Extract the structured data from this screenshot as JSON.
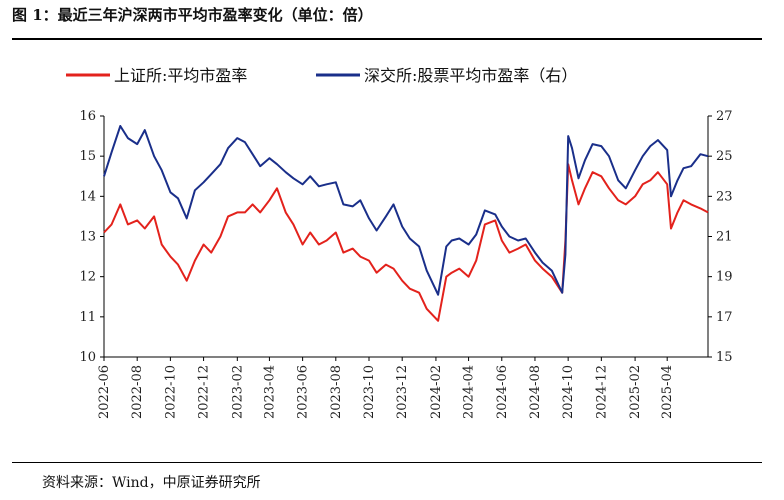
{
  "figure": {
    "title": "图 1：最近三年沪深两市平均市盈率变化（单位：倍）",
    "source": "资料来源：Wind，中原证券研究所"
  },
  "colors": {
    "sh": "#e3221c",
    "sz": "#1a2f8a"
  },
  "chart_data": {
    "type": "line",
    "title": "",
    "xlabel": "",
    "ylabel": "",
    "y2label": "",
    "grid": false,
    "legend": "top",
    "x_ticks": [
      "2022-06",
      "2022-08",
      "2022-10",
      "2022-12",
      "2023-02",
      "2023-04",
      "2023-06",
      "2023-08",
      "2023-10",
      "2023-12",
      "2024-02",
      "2024-04",
      "2024-06",
      "2024-08",
      "2024-10",
      "2024-12",
      "2025-02",
      "2025-04"
    ],
    "ylim": [
      10,
      16
    ],
    "y_ticks": [
      10,
      11,
      12,
      13,
      14,
      15,
      16
    ],
    "y2lim": [
      15,
      27
    ],
    "y2_ticks": [
      15,
      17,
      19,
      21,
      23,
      25,
      27
    ],
    "x_range": [
      "2022-06-01",
      "2025-06-15"
    ],
    "series": [
      {
        "name": "上证所:平均市盈率",
        "axis": "left",
        "points": [
          [
            "2022-06-01",
            13.1
          ],
          [
            "2022-06-15",
            13.3
          ],
          [
            "2022-07-01",
            13.8
          ],
          [
            "2022-07-15",
            13.3
          ],
          [
            "2022-08-01",
            13.4
          ],
          [
            "2022-08-15",
            13.2
          ],
          [
            "2022-09-01",
            13.5
          ],
          [
            "2022-09-15",
            12.8
          ],
          [
            "2022-10-01",
            12.5
          ],
          [
            "2022-10-15",
            12.3
          ],
          [
            "2022-10-31",
            11.9
          ],
          [
            "2022-11-15",
            12.4
          ],
          [
            "2022-12-01",
            12.8
          ],
          [
            "2022-12-15",
            12.6
          ],
          [
            "2023-01-01",
            13.0
          ],
          [
            "2023-01-15",
            13.5
          ],
          [
            "2023-02-01",
            13.6
          ],
          [
            "2023-02-15",
            13.6
          ],
          [
            "2023-03-01",
            13.8
          ],
          [
            "2023-03-15",
            13.6
          ],
          [
            "2023-04-01",
            13.9
          ],
          [
            "2023-04-15",
            14.2
          ],
          [
            "2023-05-01",
            13.6
          ],
          [
            "2023-05-15",
            13.3
          ],
          [
            "2023-06-01",
            12.8
          ],
          [
            "2023-06-15",
            13.1
          ],
          [
            "2023-07-01",
            12.8
          ],
          [
            "2023-07-15",
            12.9
          ],
          [
            "2023-08-01",
            13.1
          ],
          [
            "2023-08-15",
            12.6
          ],
          [
            "2023-09-01",
            12.7
          ],
          [
            "2023-09-15",
            12.5
          ],
          [
            "2023-10-01",
            12.4
          ],
          [
            "2023-10-15",
            12.1
          ],
          [
            "2023-11-01",
            12.3
          ],
          [
            "2023-11-15",
            12.2
          ],
          [
            "2023-12-01",
            11.9
          ],
          [
            "2023-12-15",
            11.7
          ],
          [
            "2024-01-01",
            11.6
          ],
          [
            "2024-01-15",
            11.2
          ],
          [
            "2024-02-05",
            10.9
          ],
          [
            "2024-02-20",
            12.0
          ],
          [
            "2024-03-01",
            12.1
          ],
          [
            "2024-03-15",
            12.2
          ],
          [
            "2024-04-01",
            12.0
          ],
          [
            "2024-04-15",
            12.4
          ],
          [
            "2024-05-01",
            13.3
          ],
          [
            "2024-05-20",
            13.4
          ],
          [
            "2024-06-01",
            12.9
          ],
          [
            "2024-06-15",
            12.6
          ],
          [
            "2024-07-01",
            12.7
          ],
          [
            "2024-07-15",
            12.8
          ],
          [
            "2024-08-01",
            12.4
          ],
          [
            "2024-08-15",
            12.2
          ],
          [
            "2024-09-01",
            12.0
          ],
          [
            "2024-09-20",
            11.6
          ],
          [
            "2024-09-26",
            12.9
          ],
          [
            "2024-10-01",
            14.8
          ],
          [
            "2024-10-08",
            14.4
          ],
          [
            "2024-10-20",
            13.8
          ],
          [
            "2024-11-01",
            14.2
          ],
          [
            "2024-11-15",
            14.6
          ],
          [
            "2024-12-01",
            14.5
          ],
          [
            "2024-12-15",
            14.2
          ],
          [
            "2025-01-01",
            13.9
          ],
          [
            "2025-01-15",
            13.8
          ],
          [
            "2025-02-01",
            14.0
          ],
          [
            "2025-02-15",
            14.3
          ],
          [
            "2025-03-01",
            14.4
          ],
          [
            "2025-03-15",
            14.6
          ],
          [
            "2025-04-01",
            14.3
          ],
          [
            "2025-04-08",
            13.2
          ],
          [
            "2025-04-20",
            13.6
          ],
          [
            "2025-05-01",
            13.9
          ],
          [
            "2025-05-15",
            13.8
          ],
          [
            "2025-06-01",
            13.7
          ],
          [
            "2025-06-15",
            13.6
          ]
        ]
      },
      {
        "name": "深交所:股票平均市盈率（右）",
        "axis": "right",
        "points": [
          [
            "2022-06-01",
            24.0
          ],
          [
            "2022-06-15",
            25.2
          ],
          [
            "2022-07-01",
            26.5
          ],
          [
            "2022-07-15",
            25.9
          ],
          [
            "2022-08-01",
            25.6
          ],
          [
            "2022-08-15",
            26.3
          ],
          [
            "2022-09-01",
            25.0
          ],
          [
            "2022-09-15",
            24.3
          ],
          [
            "2022-10-01",
            23.2
          ],
          [
            "2022-10-15",
            22.9
          ],
          [
            "2022-10-31",
            21.9
          ],
          [
            "2022-11-15",
            23.3
          ],
          [
            "2022-12-01",
            23.7
          ],
          [
            "2022-12-15",
            24.1
          ],
          [
            "2023-01-01",
            24.6
          ],
          [
            "2023-01-15",
            25.4
          ],
          [
            "2023-02-01",
            25.9
          ],
          [
            "2023-02-15",
            25.7
          ],
          [
            "2023-03-01",
            25.1
          ],
          [
            "2023-03-15",
            24.5
          ],
          [
            "2023-04-01",
            24.9
          ],
          [
            "2023-04-15",
            24.6
          ],
          [
            "2023-05-01",
            24.2
          ],
          [
            "2023-05-15",
            23.9
          ],
          [
            "2023-06-01",
            23.6
          ],
          [
            "2023-06-15",
            24.0
          ],
          [
            "2023-07-01",
            23.5
          ],
          [
            "2023-07-15",
            23.6
          ],
          [
            "2023-08-01",
            23.7
          ],
          [
            "2023-08-15",
            22.6
          ],
          [
            "2023-09-01",
            22.5
          ],
          [
            "2023-09-15",
            22.8
          ],
          [
            "2023-10-01",
            21.9
          ],
          [
            "2023-10-15",
            21.3
          ],
          [
            "2023-11-01",
            22.0
          ],
          [
            "2023-11-15",
            22.6
          ],
          [
            "2023-12-01",
            21.5
          ],
          [
            "2023-12-15",
            20.9
          ],
          [
            "2024-01-01",
            20.5
          ],
          [
            "2024-01-15",
            19.3
          ],
          [
            "2024-02-05",
            18.1
          ],
          [
            "2024-02-20",
            20.5
          ],
          [
            "2024-03-01",
            20.8
          ],
          [
            "2024-03-15",
            20.9
          ],
          [
            "2024-04-01",
            20.6
          ],
          [
            "2024-04-15",
            21.1
          ],
          [
            "2024-05-01",
            22.3
          ],
          [
            "2024-05-20",
            22.1
          ],
          [
            "2024-06-01",
            21.5
          ],
          [
            "2024-06-15",
            21.0
          ],
          [
            "2024-07-01",
            20.8
          ],
          [
            "2024-07-15",
            20.9
          ],
          [
            "2024-08-01",
            20.2
          ],
          [
            "2024-08-15",
            19.7
          ],
          [
            "2024-09-01",
            19.3
          ],
          [
            "2024-09-20",
            18.2
          ],
          [
            "2024-09-26",
            20.1
          ],
          [
            "2024-10-01",
            26.0
          ],
          [
            "2024-10-08",
            25.4
          ],
          [
            "2024-10-20",
            23.9
          ],
          [
            "2024-11-01",
            24.8
          ],
          [
            "2024-11-15",
            25.6
          ],
          [
            "2024-12-01",
            25.5
          ],
          [
            "2024-12-15",
            25.0
          ],
          [
            "2025-01-01",
            23.8
          ],
          [
            "2025-01-15",
            23.4
          ],
          [
            "2025-02-01",
            24.3
          ],
          [
            "2025-02-15",
            25.0
          ],
          [
            "2025-03-01",
            25.5
          ],
          [
            "2025-03-15",
            25.8
          ],
          [
            "2025-04-01",
            25.3
          ],
          [
            "2025-04-08",
            23.0
          ],
          [
            "2025-04-20",
            23.8
          ],
          [
            "2025-05-01",
            24.4
          ],
          [
            "2025-05-15",
            24.5
          ],
          [
            "2025-06-01",
            25.1
          ],
          [
            "2025-06-15",
            25.0
          ]
        ]
      }
    ]
  }
}
